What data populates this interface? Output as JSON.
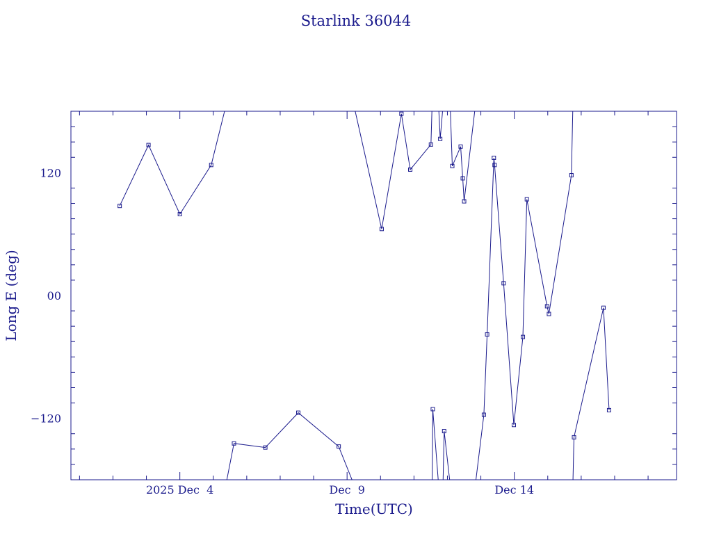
{
  "chart_data": {
    "type": "line",
    "title": "Starlink 36044",
    "xlabel": "Time(UTC)",
    "ylabel": "Long E (deg)",
    "color": "#1a1a8c",
    "xlim": [
      "2025-11-30T17:50",
      "2025-12-18T20:25"
    ],
    "ylim": [
      -180,
      180
    ],
    "x_ticks": [
      {
        "x": "2025-12-04T00:00",
        "label": "2025 Dec  4"
      },
      {
        "x": "2025-12-09T00:00",
        "label": "Dec  9"
      },
      {
        "x": "2025-12-14T00:00",
        "label": "Dec 14"
      }
    ],
    "y_ticks": [
      {
        "y": 120,
        "label": "120"
      },
      {
        "y": 0,
        "label": "00"
      },
      {
        "y": -120,
        "label": "−120"
      }
    ],
    "points": [
      {
        "x": "2025-12-02T04:50",
        "y": 87.5
      },
      {
        "x": "2025-12-03T01:30",
        "y": 147.0
      },
      {
        "x": "2025-12-04T00:00",
        "y": 79.5
      },
      {
        "x": "2025-12-04T22:30",
        "y": 127.5
      },
      {
        "x": "2025-12-05T09:00",
        "y": 185.0,
        "offscale": true
      },
      {
        "x": "2025-12-05T09:00",
        "y": -185.0,
        "offscale": true
      },
      {
        "x": "2025-12-05T14:50",
        "y": -144.5
      },
      {
        "x": "2025-12-06T13:20",
        "y": -148.5
      },
      {
        "x": "2025-12-07T13:00",
        "y": -114.5
      },
      {
        "x": "2025-12-08T18:00",
        "y": -147.5
      },
      {
        "x": "2025-12-09T05:00",
        "y": -185.0,
        "offscale": true
      },
      {
        "x": "2025-12-09T05:00",
        "y": 185.0,
        "offscale": true
      },
      {
        "x": "2025-12-10T00:50",
        "y": 65.0
      },
      {
        "x": "2025-12-10T15:00",
        "y": 177.5
      },
      {
        "x": "2025-12-10T21:20",
        "y": 123.0
      },
      {
        "x": "2025-12-11T12:10",
        "y": 147.5
      },
      {
        "x": "2025-12-11T13:00",
        "y": 185.0,
        "offscale": true
      },
      {
        "x": "2025-12-11T13:00",
        "y": -185.0,
        "offscale": true
      },
      {
        "x": "2025-12-11T13:30",
        "y": -111.0
      },
      {
        "x": "2025-12-11T17:40",
        "y": -185.0,
        "offscale": true
      },
      {
        "x": "2025-12-11T17:40",
        "y": 185.0,
        "offscale": true
      },
      {
        "x": "2025-12-11T18:50",
        "y": 153.0
      },
      {
        "x": "2025-12-11T20:50",
        "y": 185.0,
        "offscale": true
      },
      {
        "x": "2025-12-11T20:50",
        "y": -185.0,
        "offscale": true
      },
      {
        "x": "2025-12-11T21:40",
        "y": -132.5
      },
      {
        "x": "2025-12-12T02:00",
        "y": -185.0,
        "offscale": true
      },
      {
        "x": "2025-12-12T02:00",
        "y": 185.0,
        "offscale": true
      },
      {
        "x": "2025-12-12T03:30",
        "y": 126.5
      },
      {
        "x": "2025-12-12T09:30",
        "y": 145.5
      },
      {
        "x": "2025-12-12T11:00",
        "y": 114.5
      },
      {
        "x": "2025-12-12T12:00",
        "y": 92.0
      },
      {
        "x": "2025-12-12T20:00",
        "y": 185.0,
        "offscale": true
      },
      {
        "x": "2025-12-12T20:00",
        "y": -185.0,
        "offscale": true
      },
      {
        "x": "2025-12-13T02:10",
        "y": -116.5
      },
      {
        "x": "2025-12-13T04:30",
        "y": -38.0
      },
      {
        "x": "2025-12-13T09:20",
        "y": 134.5
      },
      {
        "x": "2025-12-13T09:50",
        "y": 127.5
      },
      {
        "x": "2025-12-13T16:20",
        "y": 12.0
      },
      {
        "x": "2025-12-13T23:40",
        "y": -126.5
      },
      {
        "x": "2025-12-14T06:10",
        "y": -40.5
      },
      {
        "x": "2025-12-14T09:00",
        "y": 94.0
      },
      {
        "x": "2025-12-14T23:30",
        "y": -10.5
      },
      {
        "x": "2025-12-15T00:50",
        "y": -18.0
      },
      {
        "x": "2025-12-15T17:00",
        "y": 117.5
      },
      {
        "x": "2025-12-15T18:00",
        "y": 185.0,
        "offscale": true
      },
      {
        "x": "2025-12-15T18:00",
        "y": -185.0,
        "offscale": true
      },
      {
        "x": "2025-12-15T18:50",
        "y": -138.5
      },
      {
        "x": "2025-12-16T16:00",
        "y": -12.0
      },
      {
        "x": "2025-12-16T20:00",
        "y": -112.0
      }
    ]
  }
}
